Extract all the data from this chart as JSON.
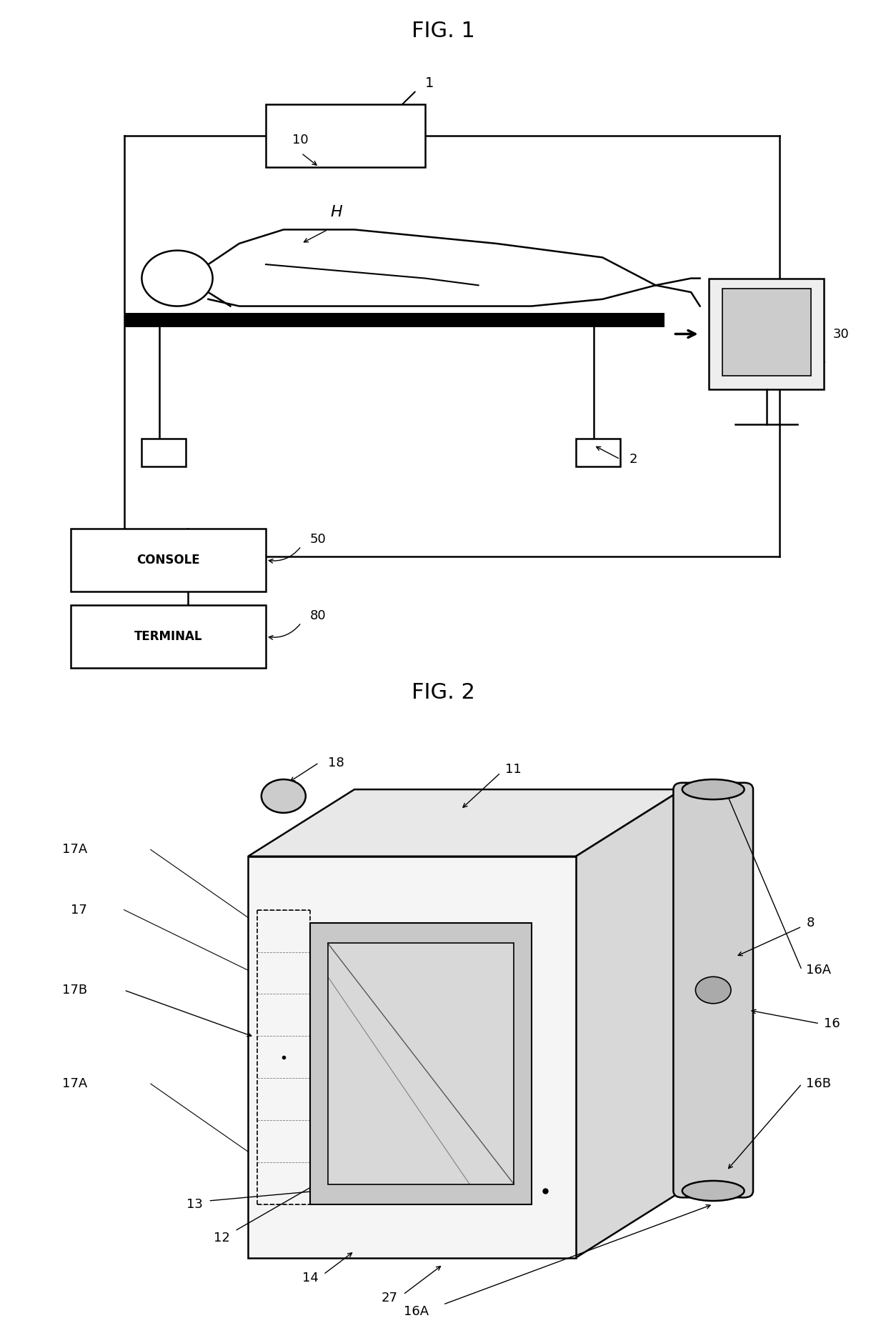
{
  "fig_title1": "FIG. 1",
  "fig_title2": "FIG. 2",
  "bg_color": "#ffffff",
  "line_color": "#000000",
  "fig1": {
    "label1": "1",
    "label2": "2",
    "label10": "10",
    "label30": "30",
    "label50": "50",
    "label80": "80",
    "labelH": "H",
    "console_text": "CONSOLE",
    "terminal_text": "TERMINAL"
  },
  "fig2": {
    "label8": "8",
    "label11": "11",
    "label12": "12",
    "label13": "13",
    "label14": "14",
    "label16": "16",
    "label16A": "16A",
    "label16B": "16B",
    "label17": "17",
    "label17A_top": "17A",
    "label17A_bot": "17A",
    "label17B": "17B",
    "label18": "18",
    "label27": "27"
  }
}
